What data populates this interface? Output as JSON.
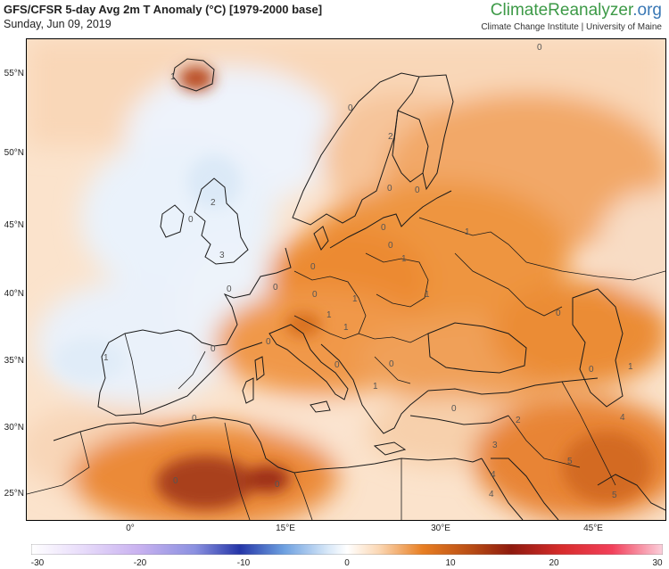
{
  "header": {
    "title": "GFS/CFSR 5-day Avg 2m T Anomaly (°C) [1979-2000 base]",
    "date": "Sunday, Jun 09, 2019"
  },
  "brand": {
    "name_main": "ClimateReanalyzer",
    "name_tld": ".org",
    "affiliation": "Climate Change Institute | University of Maine"
  },
  "axes": {
    "lat_labels": [
      "55°N",
      "50°N",
      "45°N",
      "40°N",
      "35°N",
      "30°N",
      "25°N"
    ],
    "lon_labels": [
      "0°",
      "15°E",
      "30°E",
      "45°E"
    ]
  },
  "colorbar": {
    "ticks": [
      "-30",
      "-20",
      "-10",
      "0",
      "10",
      "20",
      "30"
    ],
    "colors": {
      "cold_extreme": "#c9b2f0",
      "cold": "#2536a8",
      "neutral": "#ffffff",
      "warm": "#e87e22",
      "hot": "#8e1a0e",
      "hot_extreme": "#f2405a"
    }
  },
  "map": {
    "contour_labels": [
      "0",
      "1",
      "0",
      "2",
      "2",
      "0",
      "3",
      "0",
      "0",
      "1",
      "0",
      "1",
      "0",
      "1",
      "0",
      "1",
      "0",
      "0",
      "0",
      "0",
      "1",
      "1",
      "0",
      "1",
      "0",
      "0",
      "2",
      "3",
      "4",
      "4",
      "5",
      "5",
      "4",
      "1",
      "0",
      "1",
      "0",
      "0",
      "0",
      "0",
      "0"
    ]
  }
}
